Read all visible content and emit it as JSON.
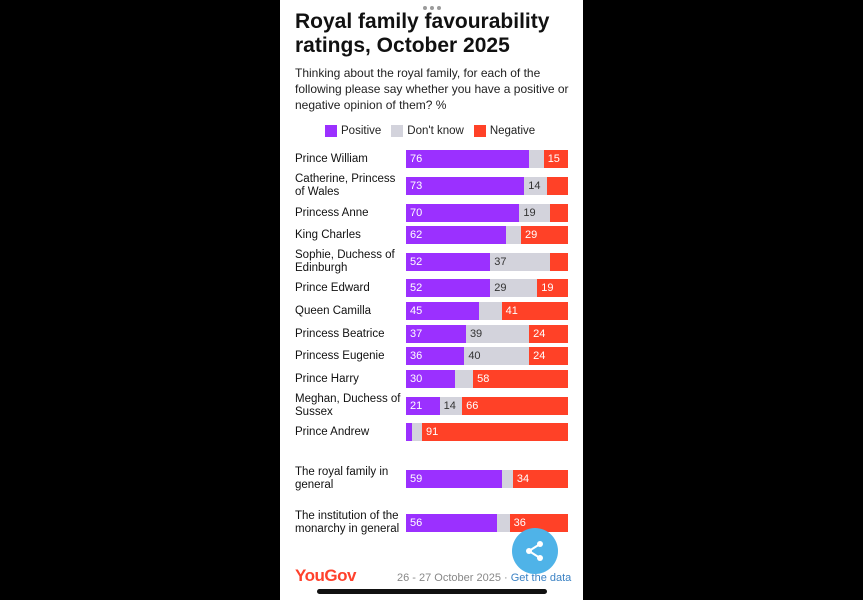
{
  "title": "Royal family favourability ratings, October 2025",
  "subtitle": "Thinking about the royal family, for each of the following please say whether you have a positive or negative opinion of them? %",
  "legend": {
    "positive": "Positive",
    "dont_know": "Don't know",
    "negative": "Negative"
  },
  "colors": {
    "positive": "#9b30ff",
    "dont_know": "#d3d3dc",
    "negative": "#ff4127"
  },
  "chart_data": {
    "type": "bar",
    "orientation": "horizontal-stacked",
    "title": "Royal family favourability ratings, October 2025",
    "series_order": [
      "Positive",
      "Don't know",
      "Negative"
    ],
    "rows": [
      {
        "label": "Prince William",
        "positive": 76,
        "dont_know": 9,
        "negative": 15,
        "show_dk": false,
        "show_neg": true
      },
      {
        "label": "Catherine, Princess of Wales",
        "positive": 73,
        "dont_know": 14,
        "negative": 13,
        "show_dk": true,
        "show_neg": false
      },
      {
        "label": "Princess Anne",
        "positive": 70,
        "dont_know": 19,
        "negative": 11,
        "show_dk": true,
        "show_neg": false
      },
      {
        "label": "King Charles",
        "positive": 62,
        "dont_know": 9,
        "negative": 29,
        "show_dk": false,
        "show_neg": true
      },
      {
        "label": "Sophie, Duchess of Edinburgh",
        "positive": 52,
        "dont_know": 37,
        "negative": 11,
        "show_dk": true,
        "show_neg": false
      },
      {
        "label": "Prince Edward",
        "positive": 52,
        "dont_know": 29,
        "negative": 19,
        "show_dk": true,
        "show_neg": true
      },
      {
        "label": "Queen Camilla",
        "positive": 45,
        "dont_know": 14,
        "negative": 41,
        "show_dk": false,
        "show_neg": true
      },
      {
        "label": "Princess Beatrice",
        "positive": 37,
        "dont_know": 39,
        "negative": 24,
        "show_dk": true,
        "show_neg": true
      },
      {
        "label": "Princess Eugenie",
        "positive": 36,
        "dont_know": 40,
        "negative": 24,
        "show_dk": true,
        "show_neg": true
      },
      {
        "label": "Prince Harry",
        "positive": 30,
        "dont_know": 11,
        "negative": 58,
        "show_dk": false,
        "show_neg": true
      },
      {
        "label": "Meghan, Duchess of Sussex",
        "positive": 21,
        "dont_know": 14,
        "negative": 66,
        "show_dk": true,
        "show_neg": true
      },
      {
        "label": "Prince Andrew",
        "positive": 4,
        "dont_know": 6,
        "negative": 91,
        "show_dk": false,
        "show_neg": true,
        "show_pos": false
      },
      {
        "label": "The royal family in general",
        "positive": 59,
        "dont_know": 7,
        "negative": 34,
        "show_dk": false,
        "show_neg": true,
        "group": 2
      },
      {
        "label": "The institution of the monarchy in general",
        "positive": 56,
        "dont_know": 8,
        "negative": 36,
        "show_dk": false,
        "show_neg": true,
        "group": 2
      }
    ]
  },
  "footer": {
    "logo": "YouGov",
    "date": "26 - 27 October 2025 · ",
    "link": "Get the data"
  }
}
